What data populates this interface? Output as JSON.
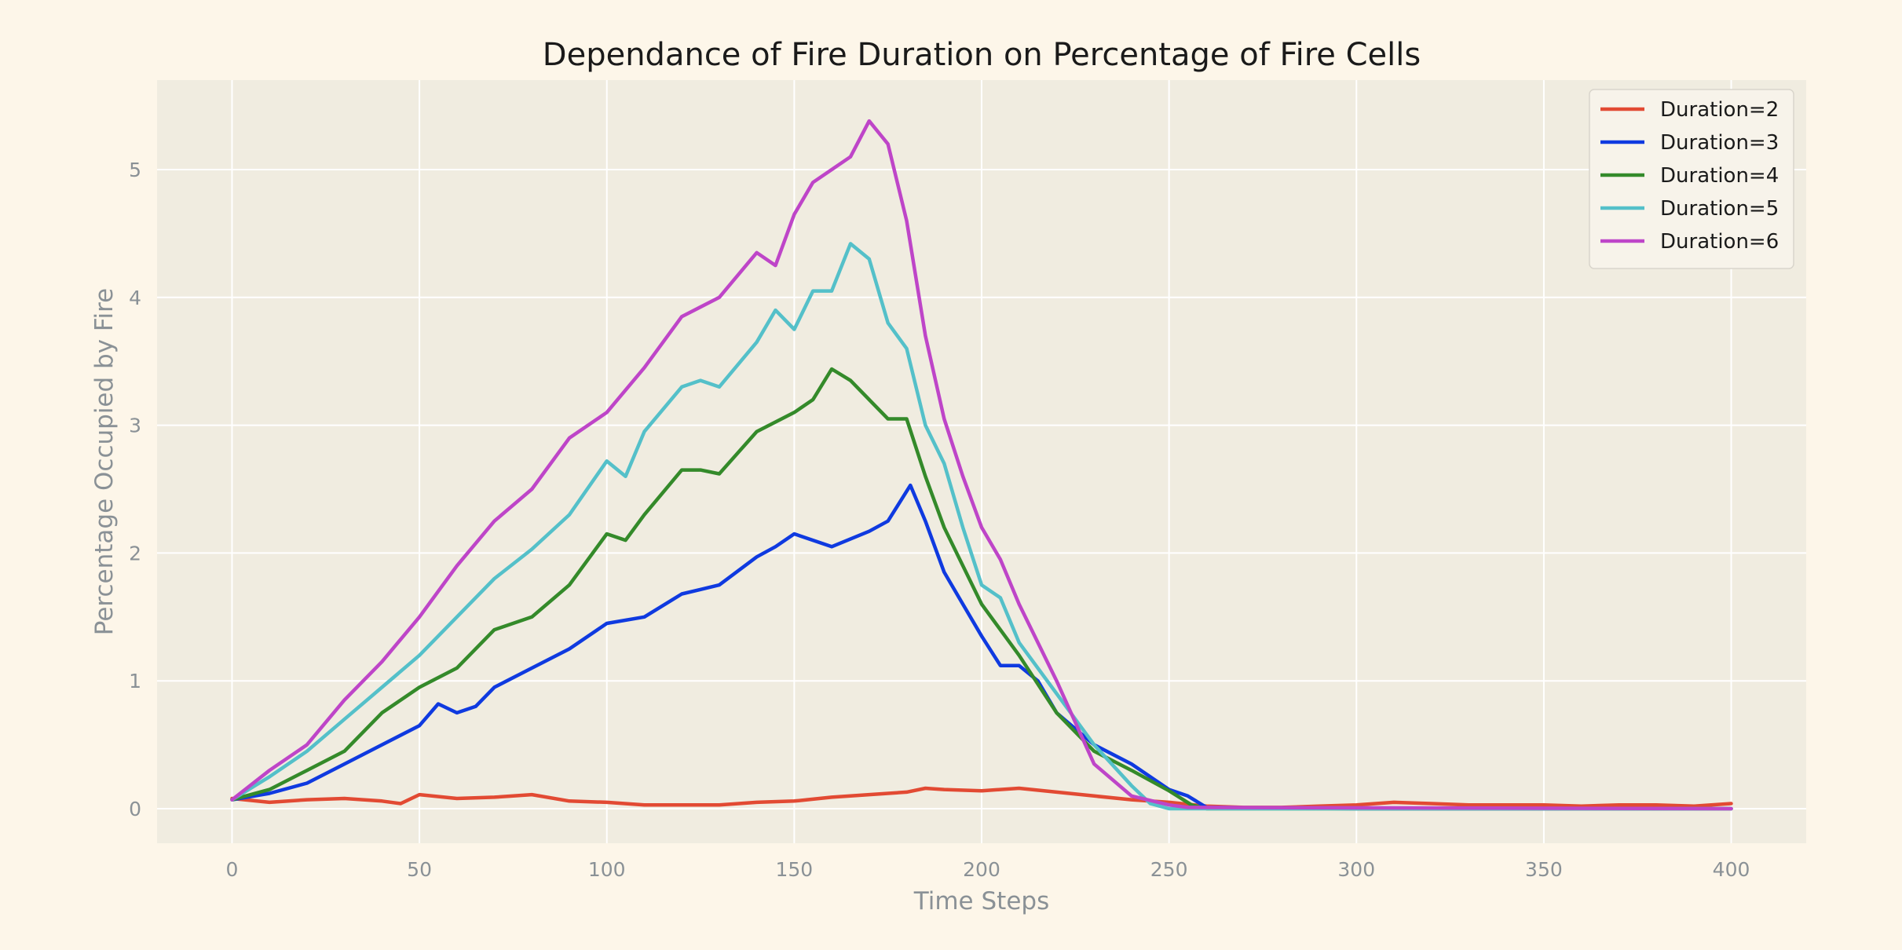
{
  "chart_data": {
    "type": "line",
    "title": "Dependance of Fire Duration on Percentage of Fire Cells",
    "xlabel": "Time Steps",
    "ylabel": "Percentage Occupied by Fire",
    "xlim": [
      -20,
      420
    ],
    "ylim": [
      -0.27,
      5.7
    ],
    "xticks": [
      0,
      50,
      100,
      150,
      200,
      250,
      300,
      350,
      400
    ],
    "yticks": [
      0,
      1,
      2,
      3,
      4,
      5
    ],
    "grid": true,
    "legend_position": "top-right",
    "series": [
      {
        "name": "Duration=2",
        "color": "#e24a33",
        "x": [
          0,
          10,
          20,
          30,
          40,
          45,
          50,
          60,
          70,
          80,
          90,
          100,
          110,
          120,
          130,
          140,
          150,
          160,
          170,
          180,
          185,
          190,
          200,
          210,
          220,
          230,
          240,
          250,
          260,
          270,
          280,
          290,
          300,
          310,
          320,
          330,
          340,
          350,
          360,
          370,
          380,
          390,
          400
        ],
        "y": [
          0.08,
          0.05,
          0.07,
          0.08,
          0.06,
          0.04,
          0.11,
          0.08,
          0.09,
          0.11,
          0.06,
          0.05,
          0.03,
          0.03,
          0.03,
          0.05,
          0.06,
          0.09,
          0.11,
          0.13,
          0.16,
          0.15,
          0.14,
          0.16,
          0.13,
          0.1,
          0.07,
          0.05,
          0.02,
          0.01,
          0.01,
          0.02,
          0.03,
          0.05,
          0.04,
          0.03,
          0.03,
          0.03,
          0.02,
          0.03,
          0.03,
          0.02,
          0.04
        ]
      },
      {
        "name": "Duration=3",
        "color": "#0f3ae0",
        "x": [
          0,
          10,
          20,
          30,
          40,
          50,
          55,
          60,
          65,
          70,
          80,
          90,
          100,
          110,
          120,
          130,
          140,
          145,
          150,
          160,
          170,
          175,
          181,
          185,
          190,
          195,
          200,
          205,
          210,
          215,
          220,
          230,
          240,
          250,
          255,
          260,
          300,
          400
        ],
        "y": [
          0.07,
          0.12,
          0.2,
          0.35,
          0.5,
          0.65,
          0.82,
          0.75,
          0.8,
          0.95,
          1.1,
          1.25,
          1.45,
          1.5,
          1.68,
          1.75,
          1.97,
          2.05,
          2.15,
          2.05,
          2.17,
          2.25,
          2.53,
          2.25,
          1.85,
          1.6,
          1.35,
          1.12,
          1.12,
          1.0,
          0.75,
          0.5,
          0.35,
          0.15,
          0.1,
          0.01,
          0.0,
          0.0
        ]
      },
      {
        "name": "Duration=4",
        "color": "#348a2a",
        "x": [
          0,
          10,
          20,
          30,
          40,
          50,
          60,
          70,
          80,
          90,
          100,
          105,
          110,
          120,
          125,
          130,
          140,
          150,
          155,
          160,
          165,
          170,
          175,
          180,
          185,
          190,
          200,
          210,
          220,
          230,
          240,
          250,
          256,
          260,
          400
        ],
        "y": [
          0.07,
          0.15,
          0.3,
          0.45,
          0.75,
          0.95,
          1.1,
          1.4,
          1.5,
          1.75,
          2.15,
          2.1,
          2.3,
          2.65,
          2.65,
          2.62,
          2.95,
          3.1,
          3.2,
          3.44,
          3.35,
          3.2,
          3.05,
          3.05,
          2.6,
          2.2,
          1.6,
          1.2,
          0.75,
          0.45,
          0.3,
          0.14,
          0.03,
          0.0,
          0.0
        ]
      },
      {
        "name": "Duration=5",
        "color": "#54c0c9",
        "x": [
          0,
          10,
          20,
          30,
          40,
          50,
          60,
          70,
          80,
          90,
          100,
          105,
          110,
          120,
          125,
          130,
          140,
          145,
          150,
          155,
          160,
          165,
          170,
          175,
          180,
          185,
          190,
          195,
          200,
          205,
          210,
          220,
          230,
          240,
          245,
          250,
          400
        ],
        "y": [
          0.07,
          0.25,
          0.45,
          0.7,
          0.95,
          1.2,
          1.5,
          1.8,
          2.03,
          2.3,
          2.72,
          2.6,
          2.95,
          3.3,
          3.35,
          3.3,
          3.65,
          3.9,
          3.75,
          4.05,
          4.05,
          4.42,
          4.3,
          3.8,
          3.6,
          3.0,
          2.7,
          2.2,
          1.75,
          1.65,
          1.3,
          0.9,
          0.5,
          0.18,
          0.04,
          0.0,
          0.0
        ]
      },
      {
        "name": "Duration=6",
        "color": "#be45c8",
        "x": [
          0,
          10,
          20,
          30,
          40,
          50,
          60,
          70,
          80,
          90,
          100,
          110,
          120,
          130,
          140,
          145,
          150,
          155,
          160,
          165,
          170,
          175,
          180,
          185,
          190,
          195,
          200,
          205,
          210,
          220,
          230,
          240,
          250,
          255,
          400
        ],
        "y": [
          0.07,
          0.3,
          0.5,
          0.85,
          1.15,
          1.5,
          1.9,
          2.25,
          2.5,
          2.9,
          3.1,
          3.45,
          3.85,
          4.0,
          4.35,
          4.25,
          4.65,
          4.9,
          5.0,
          5.1,
          5.38,
          5.2,
          4.6,
          3.7,
          3.05,
          2.6,
          2.2,
          1.95,
          1.6,
          1.0,
          0.35,
          0.1,
          0.03,
          0.01,
          0.0
        ]
      }
    ]
  }
}
